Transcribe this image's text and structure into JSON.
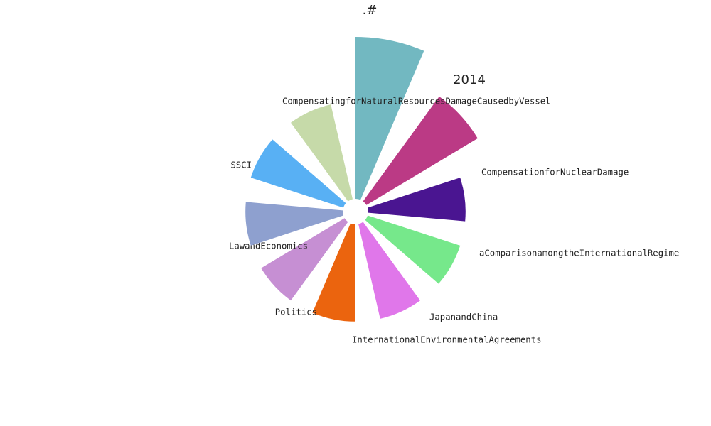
{
  "chart_data": {
    "type": "polar-bar",
    "categories": [
      "2014",
      "CompensationforNuclearDamage",
      "aComparisonamongtheInternationalRegime",
      "JapanandChina",
      "InternationalEnvironmentalAgreements",
      "Politics",
      "LawandEconomics",
      "SSCI",
      "CompensatingforNaturalResourcesDamageCausedbyVessel",
      ".#"
    ],
    "values": [
      10,
      8,
      6,
      6,
      6,
      6,
      6,
      6,
      6,
      6
    ],
    "colors": [
      "#72b8c1",
      "#bb3a85",
      "#4a1591",
      "#76e88b",
      "#e077ea",
      "#eb640e",
      "#c68fd3",
      "#8ea0cf",
      "#58b0f4",
      "#c6daa9"
    ],
    "rlim": [
      0,
      10
    ]
  }
}
